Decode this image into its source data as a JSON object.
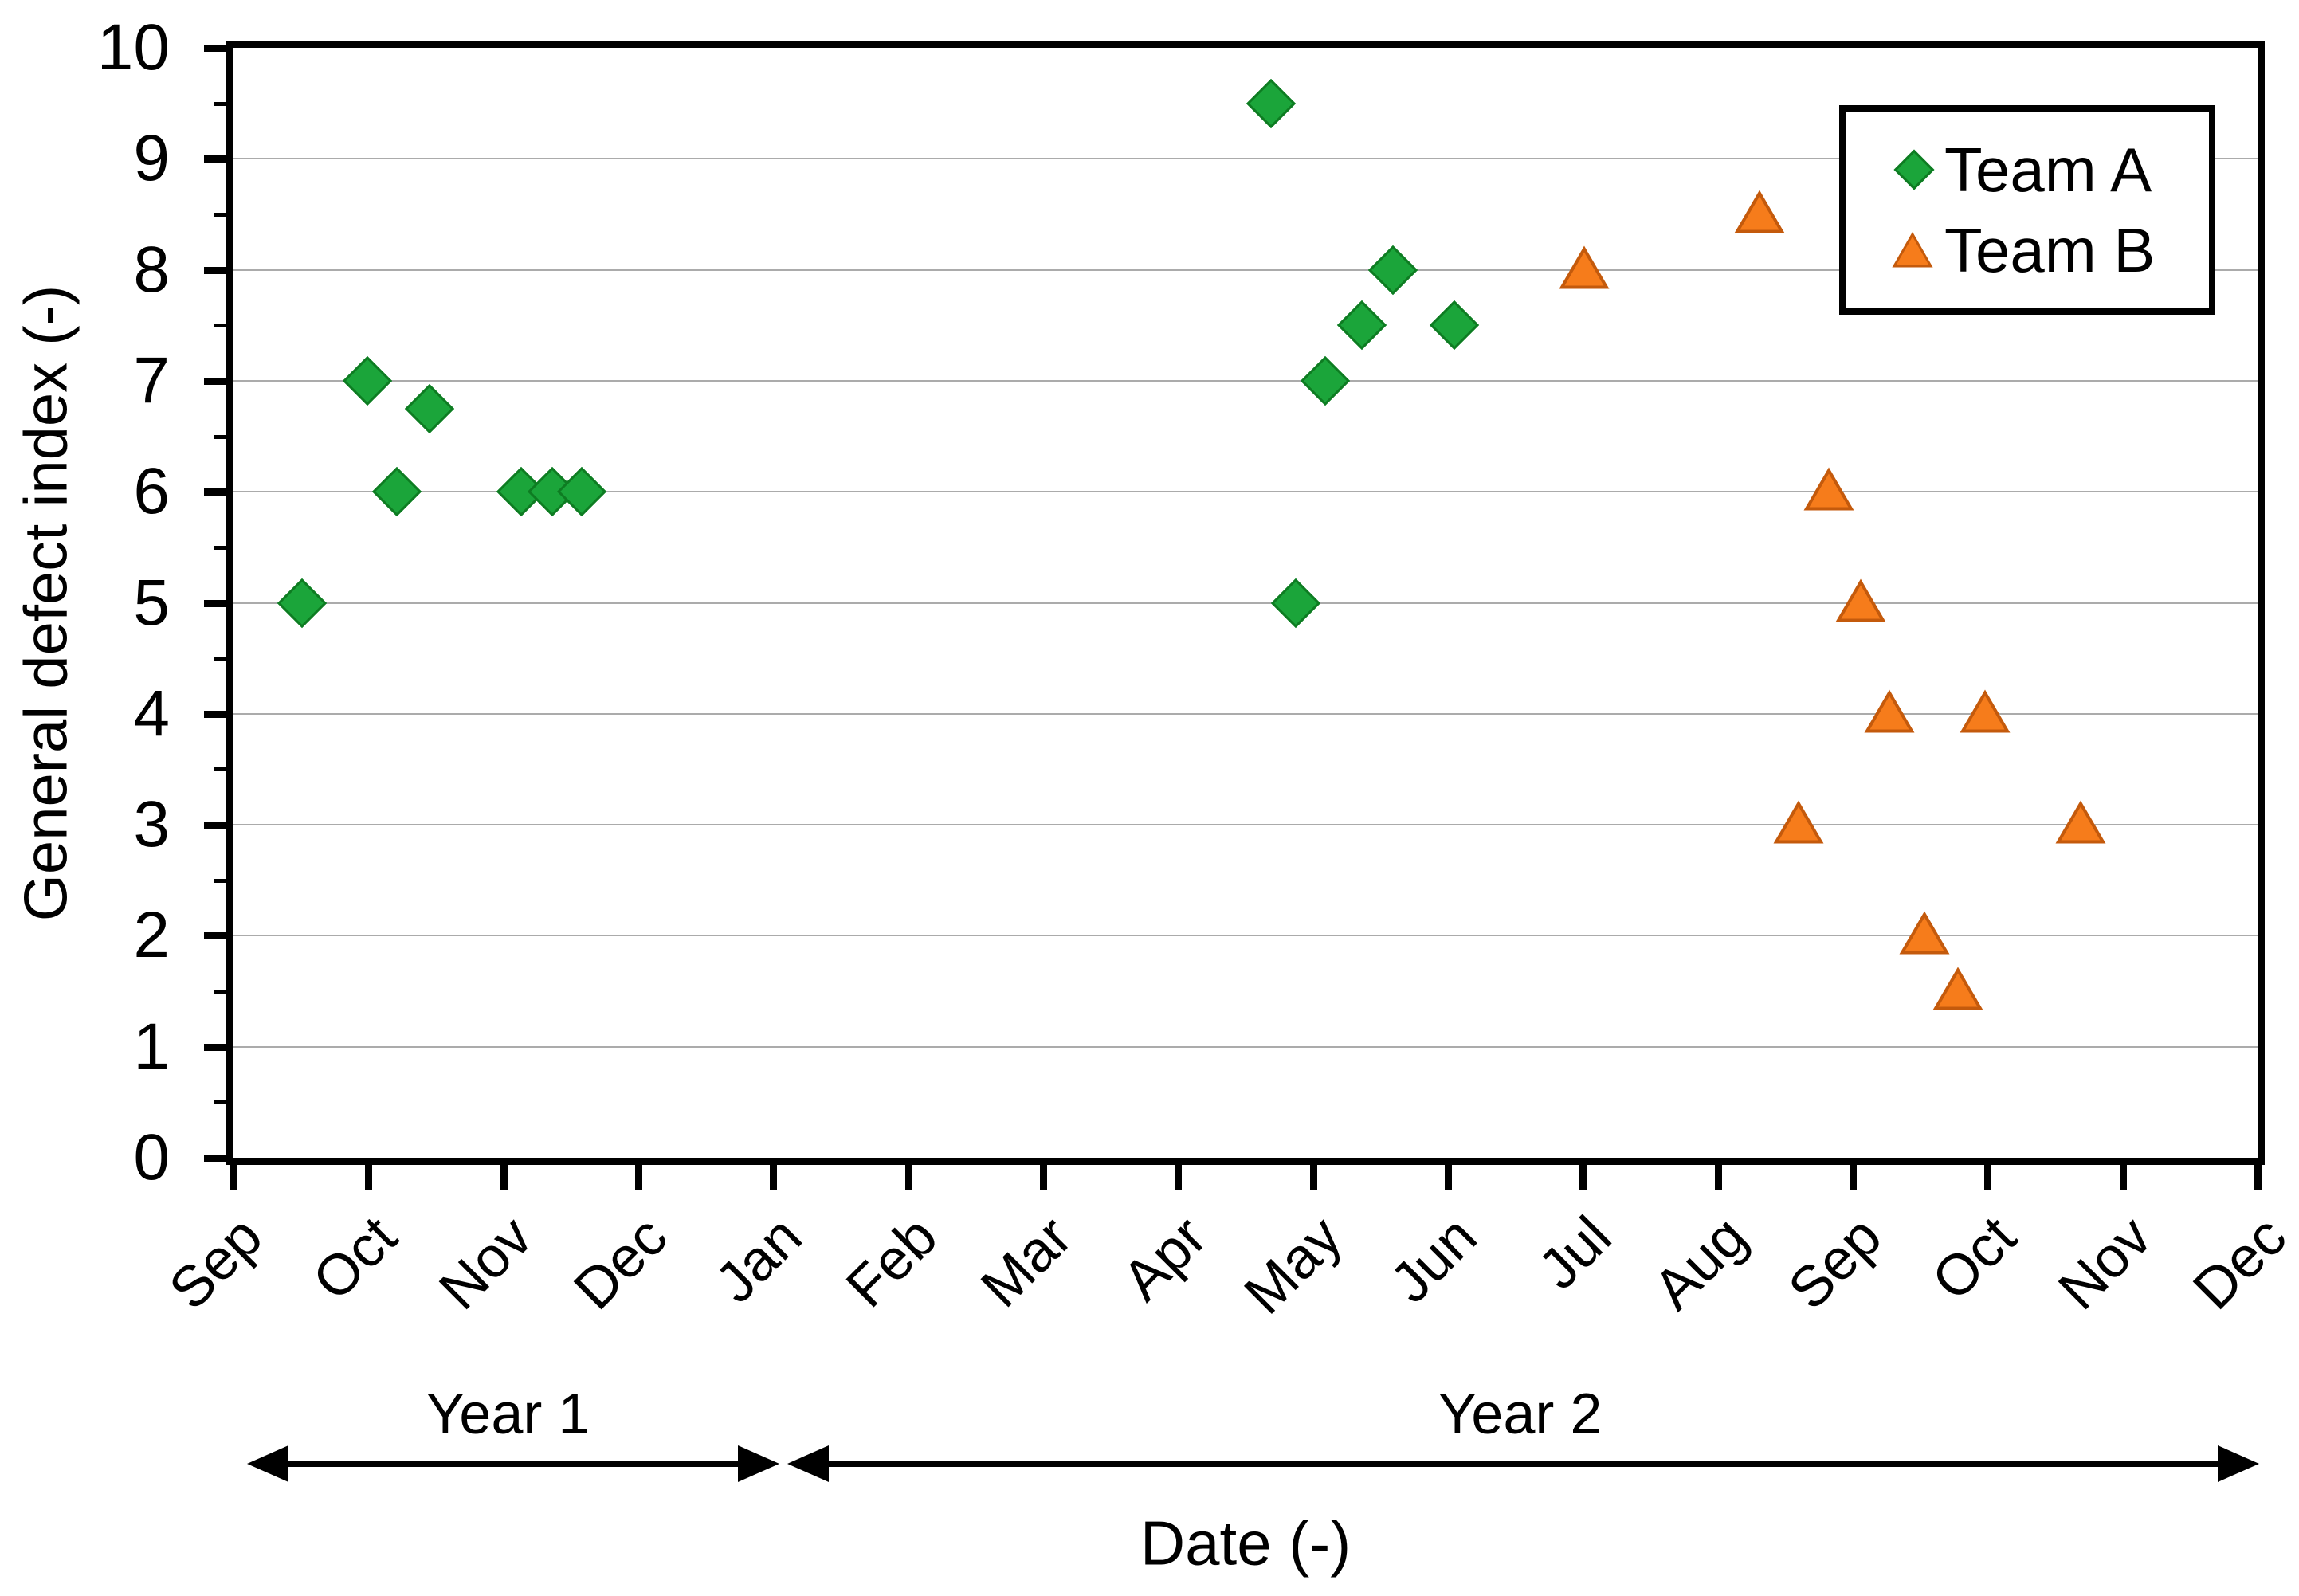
{
  "chart_data": {
    "type": "scatter",
    "title": "",
    "ylabel": "General defect index (-)",
    "xlabel": "Date (-)",
    "ylim": [
      0,
      10
    ],
    "y_ticks": [
      0,
      1,
      2,
      3,
      4,
      5,
      6,
      7,
      8,
      9,
      10
    ],
    "y_minor_tick_step": 0.5,
    "grid": true,
    "x_axis_note": "x values are months measured from Sep of Year 1 (Sep=0 ... Dec of Year 2=15); ticks are at whole months",
    "x_tick_labels": [
      "Sep",
      "Oct",
      "Nov",
      "Dec",
      "Jan",
      "Feb",
      "Mar",
      "Apr",
      "May",
      "Jun",
      "Jul",
      "Aug",
      "Sep",
      "Oct",
      "Nov",
      "Dec"
    ],
    "legend_position": "top-right",
    "series": [
      {
        "name": "Team A",
        "marker": "diamond",
        "fill": "#1BA53A",
        "edge": "#0E7C22",
        "points": [
          {
            "x": 0.51,
            "y": 5
          },
          {
            "x": 0.99,
            "y": 7
          },
          {
            "x": 1.21,
            "y": 6
          },
          {
            "x": 1.45,
            "y": 6.75
          },
          {
            "x": 2.13,
            "y": 6
          },
          {
            "x": 2.36,
            "y": 6
          },
          {
            "x": 2.58,
            "y": 6
          },
          {
            "x": 7.69,
            "y": 9.5
          },
          {
            "x": 7.87,
            "y": 5
          },
          {
            "x": 8.09,
            "y": 7
          },
          {
            "x": 8.36,
            "y": 7.5
          },
          {
            "x": 8.59,
            "y": 8
          },
          {
            "x": 9.05,
            "y": 7.5
          }
        ]
      },
      {
        "name": "Team B",
        "marker": "triangle",
        "fill": "#F67C1B",
        "edge": "#C45A0C",
        "points": [
          {
            "x": 10.01,
            "y": 8
          },
          {
            "x": 11.31,
            "y": 8.5
          },
          {
            "x": 11.6,
            "y": 3
          },
          {
            "x": 11.82,
            "y": 6
          },
          {
            "x": 12.06,
            "y": 5
          },
          {
            "x": 12.27,
            "y": 4
          },
          {
            "x": 12.53,
            "y": 2
          },
          {
            "x": 12.78,
            "y": 1.5
          },
          {
            "x": 12.98,
            "y": 4
          },
          {
            "x": 13.69,
            "y": 3
          }
        ]
      }
    ],
    "annotations": {
      "year1_label": "Year 1",
      "year2_label": "Year 2",
      "year_boundary_month_index": 4
    }
  },
  "colors": {
    "team_a_fill": "#1BA53A",
    "team_a_edge": "#0E7C22",
    "team_b_fill": "#F67C1B",
    "team_b_edge": "#C45A0C",
    "gridline": "#ABABAB",
    "axis": "#000000",
    "background": "#FFFFFF"
  }
}
